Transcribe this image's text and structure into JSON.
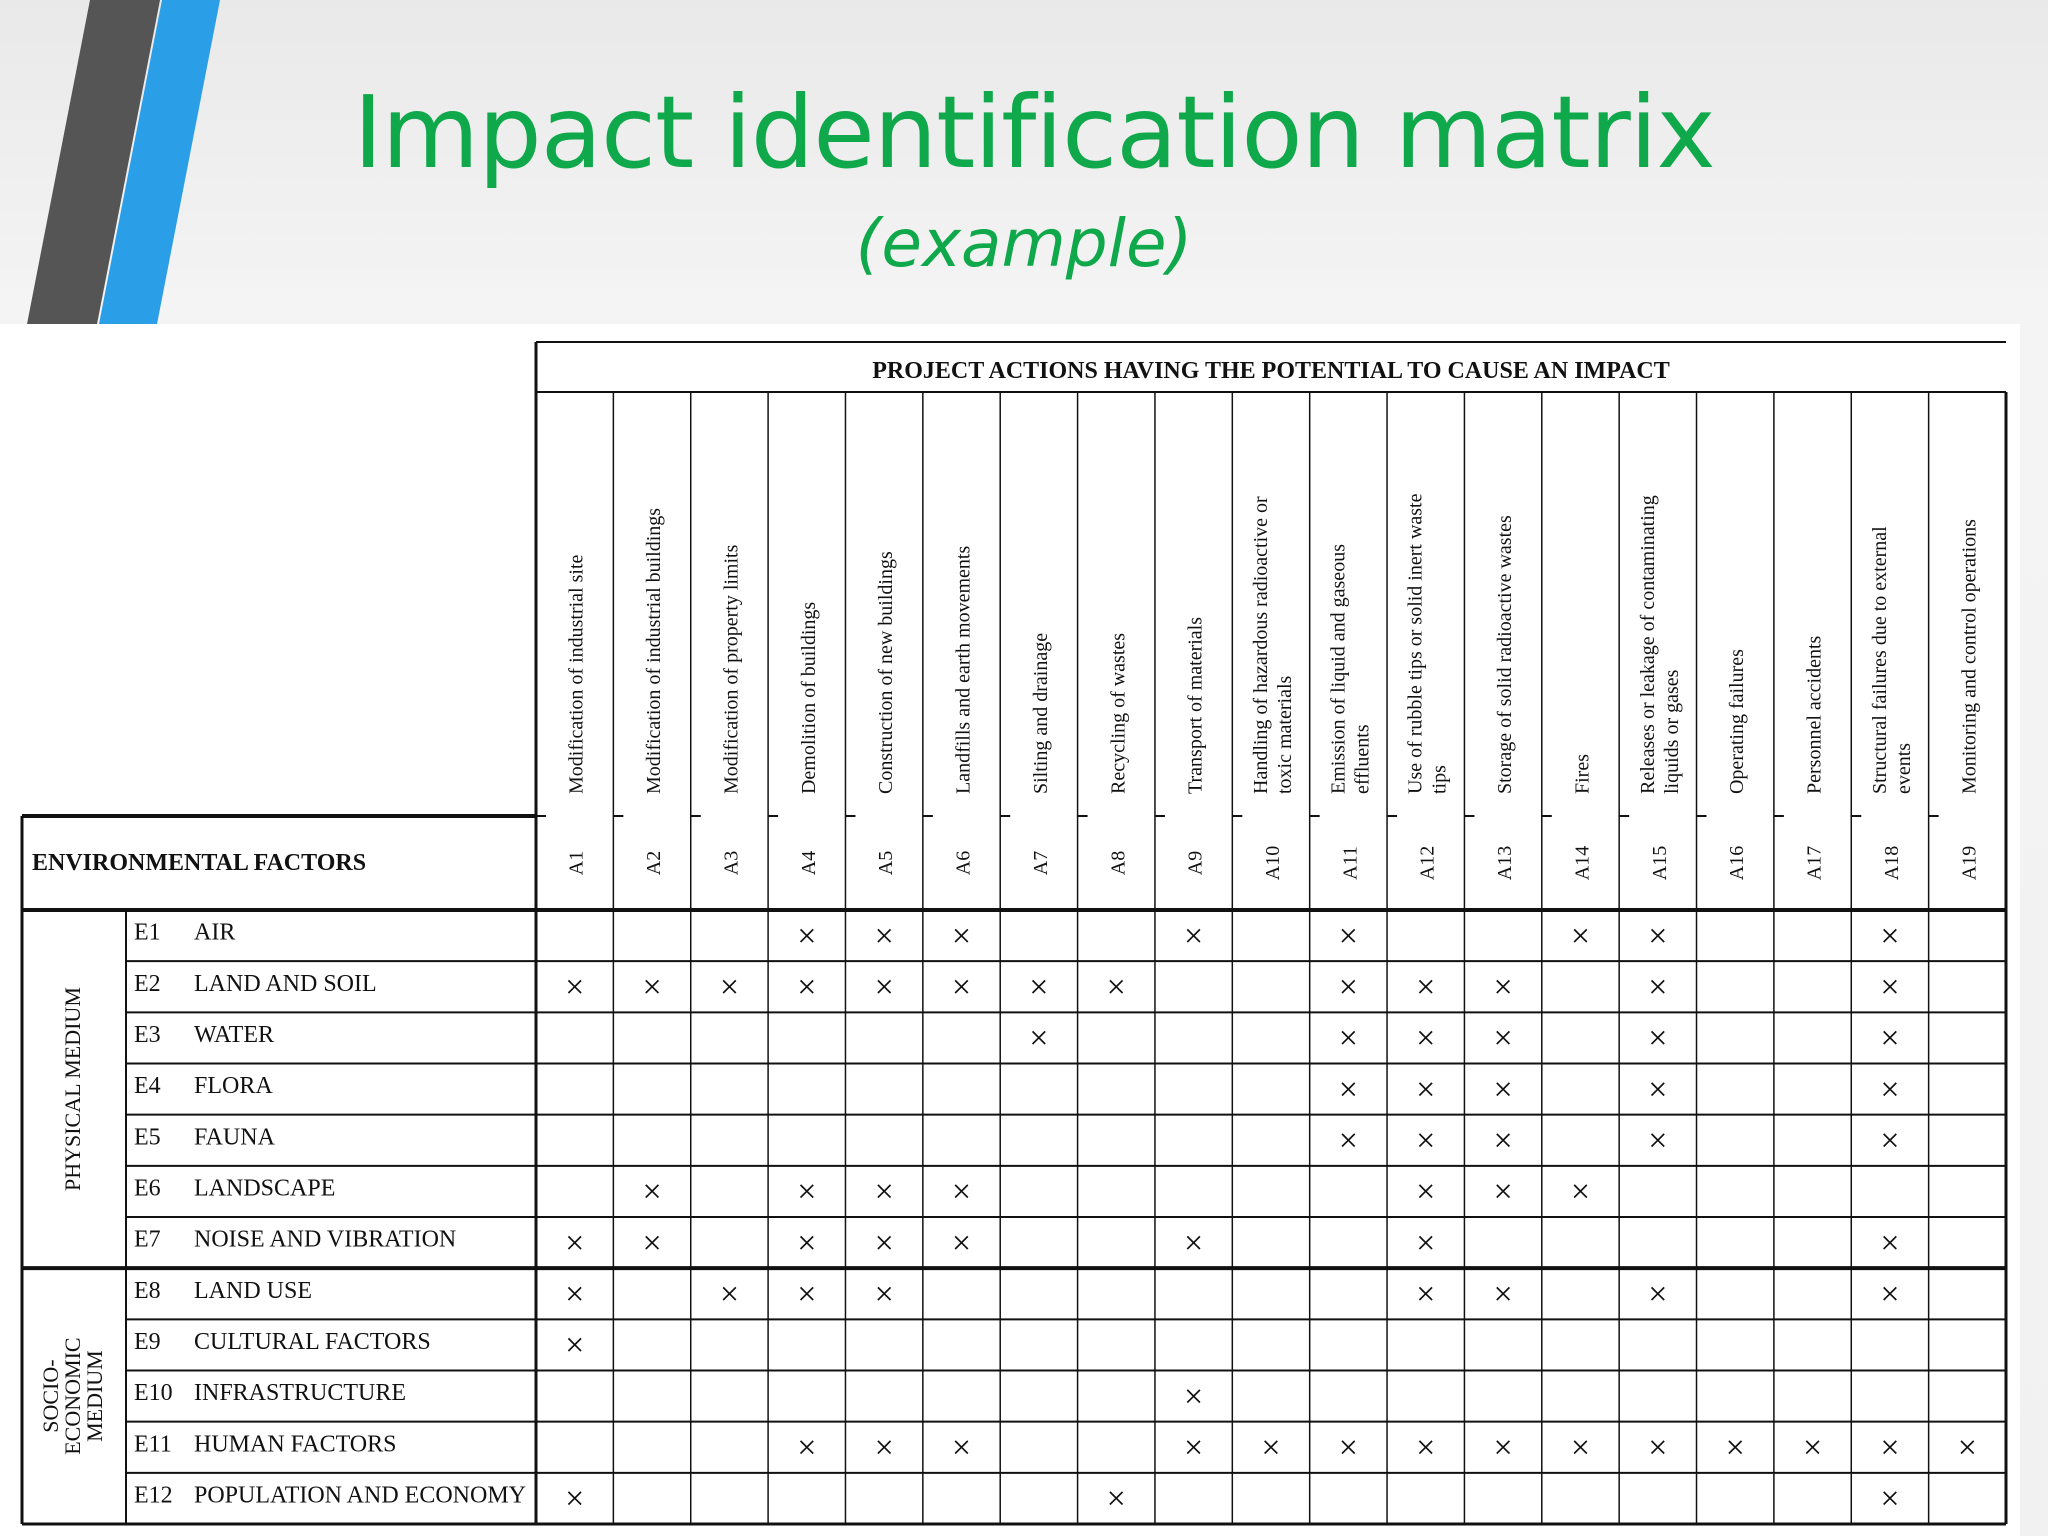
{
  "slide": {
    "title": "Impact identification matrix",
    "subtitle": "(example)"
  },
  "matrix": {
    "header_title": "PROJECT ACTIONS HAVING THE POTENTIAL TO CAUSE AN IMPACT",
    "factors_header": "ENVIRONMENTAL FACTORS",
    "mark_symbol": "×",
    "actions": [
      {
        "code": "A1",
        "name": [
          "Modification of industrial site"
        ]
      },
      {
        "code": "A2",
        "name": [
          "Modification of industrial buildings"
        ]
      },
      {
        "code": "A3",
        "name": [
          "Modification of property limits"
        ]
      },
      {
        "code": "A4",
        "name": [
          "Demolition of buildings"
        ]
      },
      {
        "code": "A5",
        "name": [
          "Construction of new buildings"
        ]
      },
      {
        "code": "A6",
        "name": [
          "Landfills and earth movements"
        ]
      },
      {
        "code": "A7",
        "name": [
          "Silting and drainage"
        ]
      },
      {
        "code": "A8",
        "name": [
          "Recycling of wastes"
        ]
      },
      {
        "code": "A9",
        "name": [
          "Transport of materials"
        ]
      },
      {
        "code": "A10",
        "name": [
          "Handling of hazardous radioactive or",
          "toxic materials"
        ]
      },
      {
        "code": "A11",
        "name": [
          "Emission of liquid and gaseous",
          "effluents"
        ]
      },
      {
        "code": "A12",
        "name": [
          "Use of rubble tips or solid inert waste",
          "tips"
        ]
      },
      {
        "code": "A13",
        "name": [
          "Storage of solid radioactive wastes"
        ]
      },
      {
        "code": "A14",
        "name": [
          "Fires"
        ]
      },
      {
        "code": "A15",
        "name": [
          "Releases or leakage of contaminating",
          "liquids or gases"
        ]
      },
      {
        "code": "A16",
        "name": [
          "Operating failures"
        ]
      },
      {
        "code": "A17",
        "name": [
          "Personnel accidents"
        ]
      },
      {
        "code": "A18",
        "name": [
          "Structural failures due to external",
          "events"
        ]
      },
      {
        "code": "A19",
        "name": [
          "Monitoring and control operations"
        ]
      }
    ],
    "groups": [
      {
        "label": [
          "PHYSICAL MEDIUM"
        ],
        "rows": 7
      },
      {
        "label": [
          "SOCIO-",
          "ECONOMIC",
          "MEDIUM"
        ],
        "rows": 5
      }
    ],
    "factors": [
      {
        "code": "E1",
        "name": "AIR",
        "marks": [
          4,
          5,
          6,
          9,
          11,
          14,
          15,
          18
        ]
      },
      {
        "code": "E2",
        "name": "LAND AND SOIL",
        "marks": [
          1,
          2,
          3,
          4,
          5,
          6,
          7,
          8,
          11,
          12,
          13,
          15,
          18
        ]
      },
      {
        "code": "E3",
        "name": "WATER",
        "marks": [
          7,
          11,
          12,
          13,
          15,
          18
        ]
      },
      {
        "code": "E4",
        "name": "FLORA",
        "marks": [
          11,
          12,
          13,
          15,
          18
        ]
      },
      {
        "code": "E5",
        "name": "FAUNA",
        "marks": [
          11,
          12,
          13,
          15,
          18
        ]
      },
      {
        "code": "E6",
        "name": "LANDSCAPE",
        "marks": [
          2,
          4,
          5,
          6,
          12,
          13,
          14
        ]
      },
      {
        "code": "E7",
        "name": "NOISE AND VIBRATION",
        "marks": [
          1,
          2,
          4,
          5,
          6,
          9,
          12,
          18
        ]
      },
      {
        "code": "E8",
        "name": "LAND USE",
        "marks": [
          1,
          3,
          4,
          5,
          12,
          13,
          15,
          18
        ]
      },
      {
        "code": "E9",
        "name": "CULTURAL FACTORS",
        "marks": [
          1
        ]
      },
      {
        "code": "E10",
        "name": "INFRASTRUCTURE",
        "marks": [
          9
        ]
      },
      {
        "code": "E11",
        "name": "HUMAN FACTORS",
        "marks": [
          4,
          5,
          6,
          9,
          10,
          11,
          12,
          13,
          14,
          15,
          16,
          17,
          18,
          19
        ]
      },
      {
        "code": "E12",
        "name": "POPULATION AND ECONOMY",
        "marks": [
          1,
          8,
          18
        ]
      }
    ]
  }
}
